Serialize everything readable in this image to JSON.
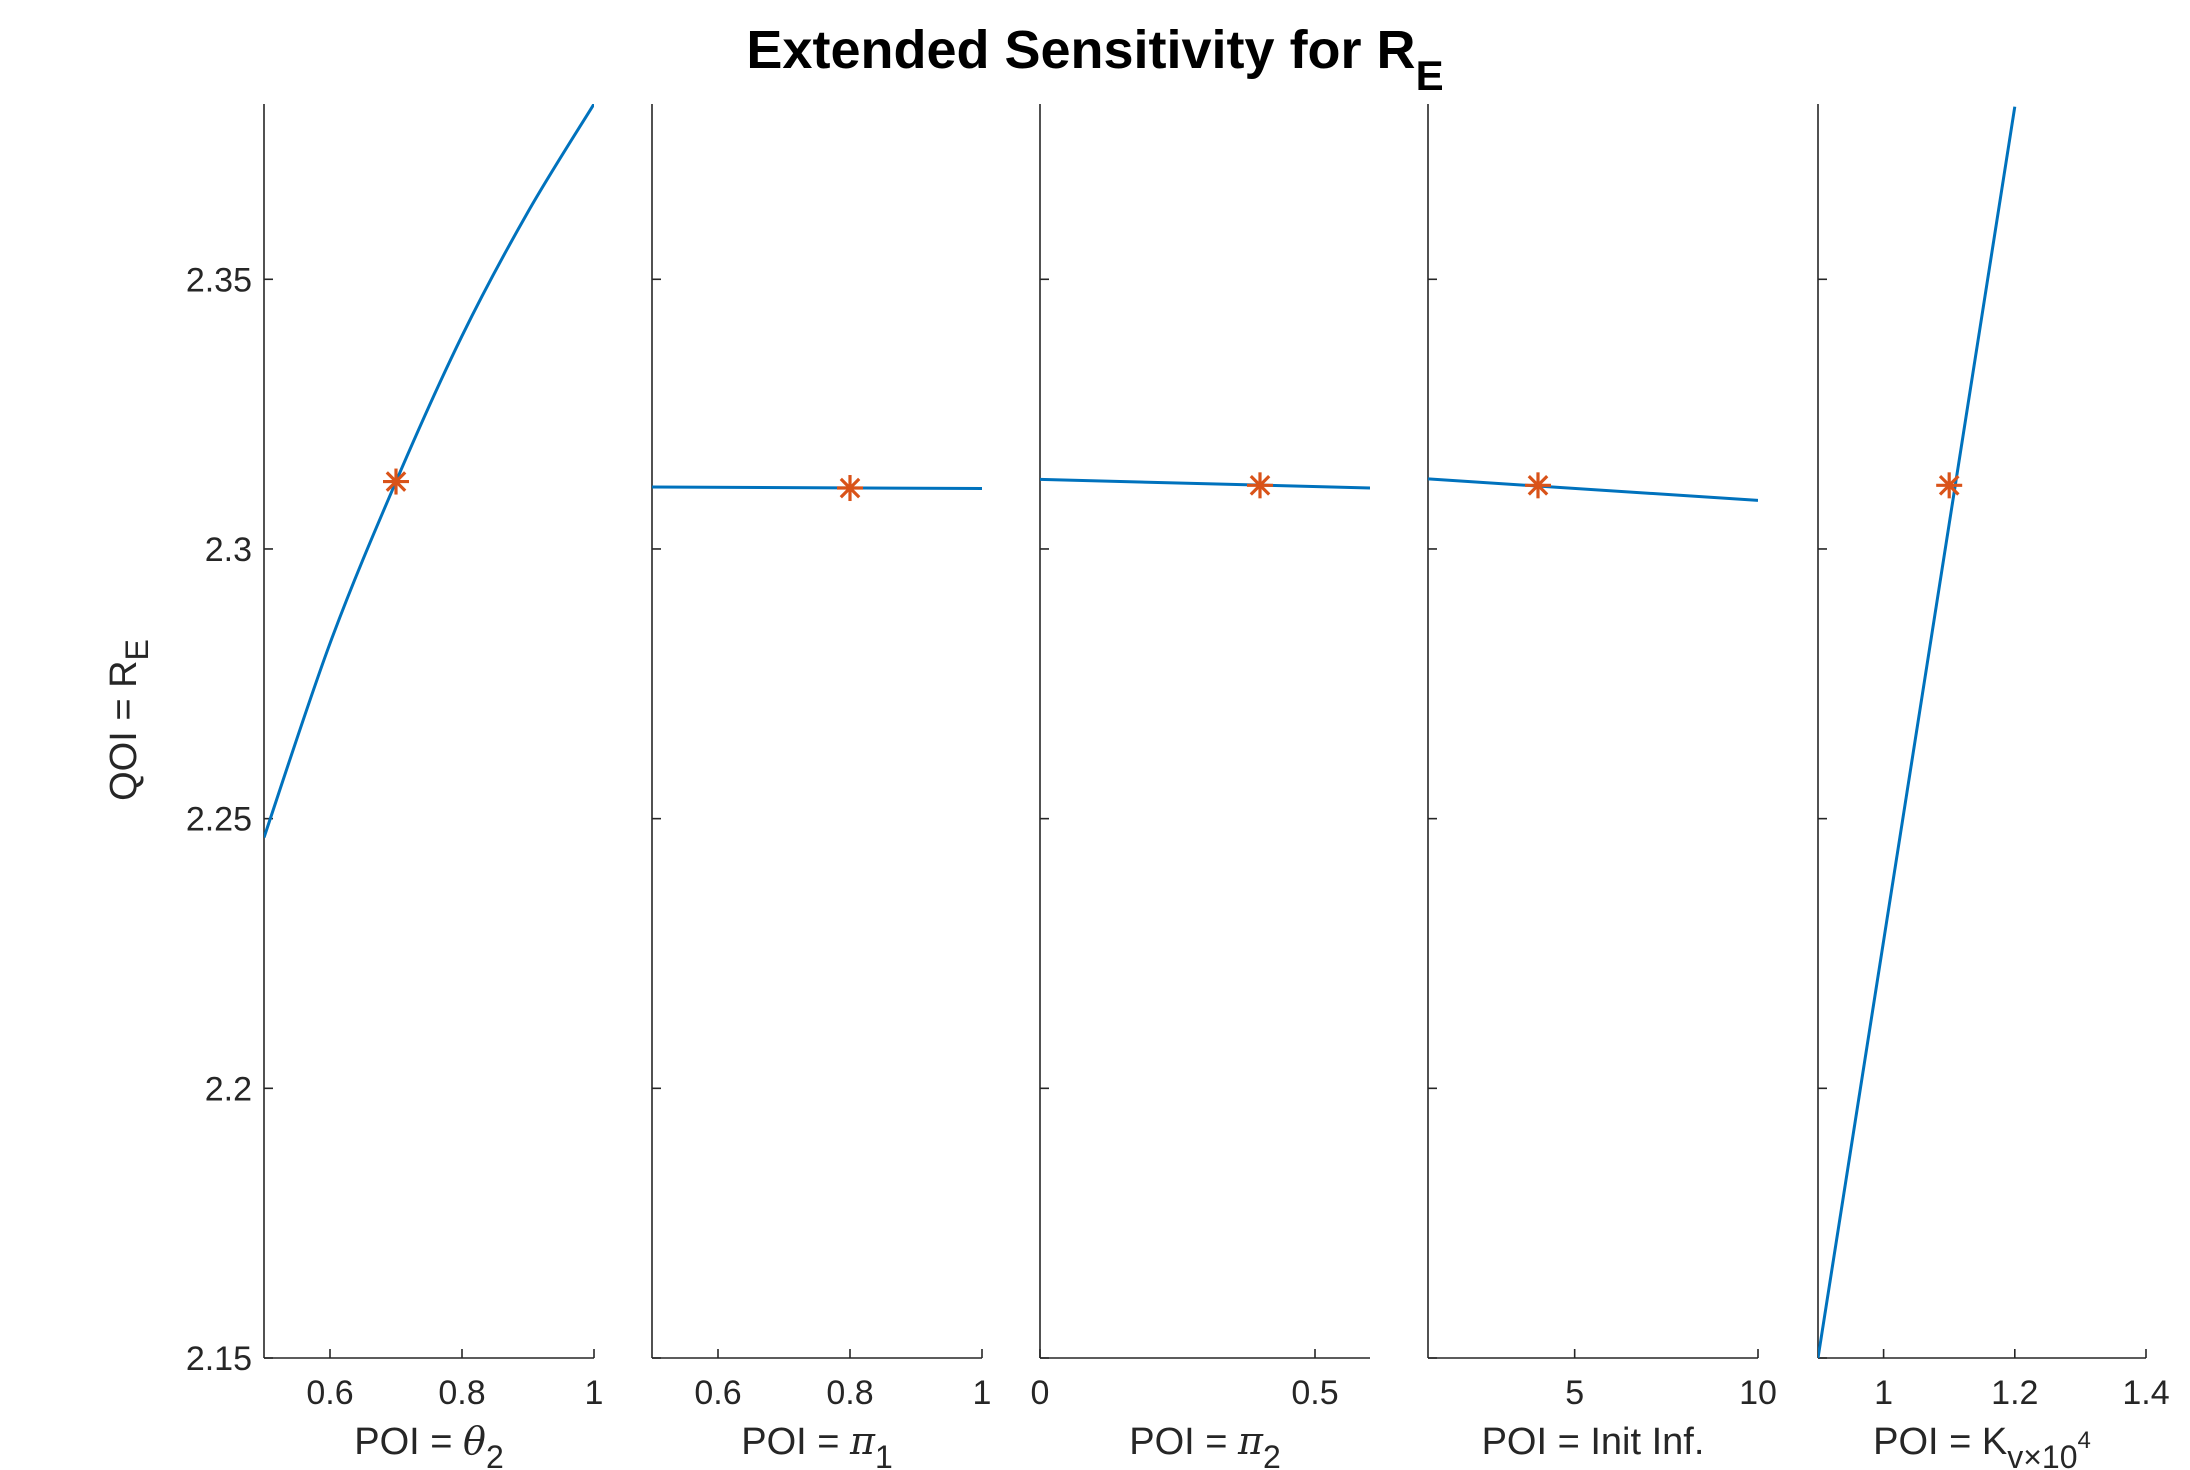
{
  "chart_data": {
    "type": "line",
    "title": "Extended Sensitivity for R",
    "title_sub": "E",
    "ylabel": "QOI = R",
    "ylabel_sub": "E",
    "ylim": [
      2.15,
      2.3825
    ],
    "yticks": [
      2.15,
      2.2,
      2.25,
      2.3,
      2.35
    ],
    "ytick_labels": [
      "2.15",
      "2.2",
      "2.25",
      "2.3",
      "2.35"
    ],
    "colors": {
      "line": "#0072bd",
      "marker": "#d95319",
      "axis": "#262626"
    },
    "grid": false,
    "panels": [
      {
        "xlabel": "POI = ",
        "xlabel_symbol": "θ",
        "xlabel_sub": "2",
        "xlabel_sup": "",
        "xlim": [
          0.5,
          1.0
        ],
        "xticks": [
          0.6,
          0.8,
          1.0
        ],
        "xtick_labels": [
          "0.6",
          "0.8",
          "1"
        ],
        "x": [
          0.5,
          0.6,
          0.7,
          0.8,
          0.9,
          1.0
        ],
        "y": [
          2.2465,
          2.2825,
          2.3125,
          2.3395,
          2.3625,
          2.3825
        ],
        "marker": {
          "x": 0.7,
          "y": 2.3125
        }
      },
      {
        "xlabel": "POI = ",
        "xlabel_symbol": "π",
        "xlabel_sub": "1",
        "xlabel_sup": "",
        "xlim": [
          0.5,
          1.0
        ],
        "xticks": [
          0.6,
          0.8,
          1.0
        ],
        "xtick_labels": [
          "0.6",
          "0.8",
          "1"
        ],
        "x": [
          0.5,
          1.0
        ],
        "y": [
          2.3115,
          2.3112
        ],
        "marker": {
          "x": 0.8,
          "y": 2.3113
        }
      },
      {
        "xlabel": "POI = ",
        "xlabel_symbol": "π",
        "xlabel_sub": "2",
        "xlabel_sup": "",
        "xlim": [
          0.0,
          0.6
        ],
        "xticks": [
          0.0,
          0.5
        ],
        "xtick_labels": [
          "0",
          "0.5"
        ],
        "x": [
          0.0,
          0.6
        ],
        "y": [
          2.3129,
          2.3113
        ],
        "marker": {
          "x": 0.4,
          "y": 2.3118
        }
      },
      {
        "xlabel": "POI = Init Inf.",
        "xlabel_symbol": "",
        "xlabel_sub": "",
        "xlabel_sup": "",
        "xlim": [
          1.0,
          10.0
        ],
        "xticks": [
          5,
          10
        ],
        "xtick_labels": [
          "5",
          "10"
        ],
        "x": [
          1.0,
          10.0
        ],
        "y": [
          2.313,
          2.309
        ],
        "marker": {
          "x": 4.0,
          "y": 2.3118
        }
      },
      {
        "xlabel": "POI = K",
        "xlabel_symbol": "",
        "xlabel_sub": "v",
        "xlabel_sup": "×10",
        "xlabel_sup2": "4",
        "xlim": [
          0.9,
          1.4
        ],
        "xticks": [
          1.0,
          1.2,
          1.4
        ],
        "xtick_labels": [
          "1",
          "1.2",
          "1.4"
        ],
        "x": [
          0.9,
          1.2
        ],
        "y": [
          2.15,
          2.382
        ],
        "marker": {
          "x": 1.1,
          "y": 2.3118
        }
      }
    ]
  }
}
